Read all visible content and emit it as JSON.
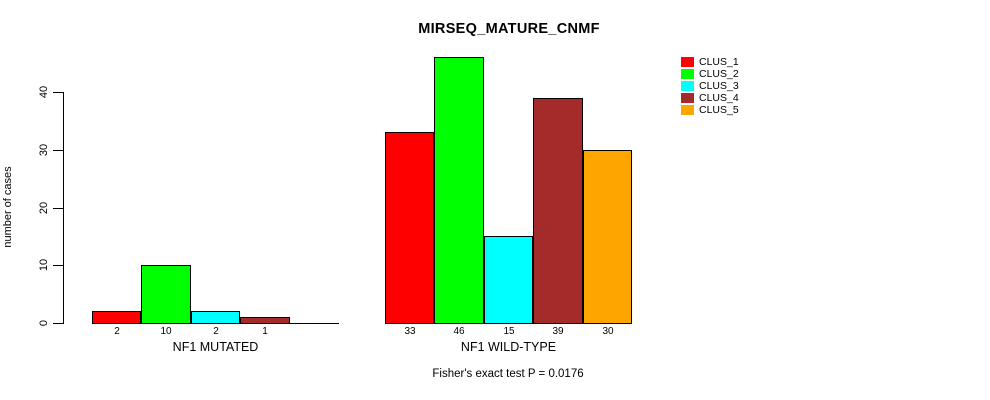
{
  "title": "MIRSEQ_MATURE_CNMF",
  "caption": "Fisher's exact test P = 0.0176",
  "y_axis": {
    "label": "number of cases",
    "ticks": [
      0,
      10,
      20,
      30,
      40
    ]
  },
  "legend": {
    "entries": [
      {
        "label": "CLUS_1",
        "color": "#FF0000"
      },
      {
        "label": "CLUS_2",
        "color": "#00FF00"
      },
      {
        "label": "CLUS_3",
        "color": "#00FFFF"
      },
      {
        "label": "CLUS_4",
        "color": "#A52A2A"
      },
      {
        "label": "CLUS_5",
        "color": "#FFA500"
      }
    ]
  },
  "chart_data": {
    "type": "bar",
    "title": "MIRSEQ_MATURE_CNMF",
    "ylabel": "number of cases",
    "ylim": [
      0,
      46
    ],
    "axis_max": 40,
    "yticks": [
      0,
      10,
      20,
      30,
      40
    ],
    "grid": false,
    "legend_position": "top-right",
    "series_names": [
      "CLUS_1",
      "CLUS_2",
      "CLUS_3",
      "CLUS_4",
      "CLUS_5"
    ],
    "series_colors": [
      "#FF0000",
      "#00FF00",
      "#00FFFF",
      "#A52A2A",
      "#FFA500"
    ],
    "groups": [
      {
        "label": "NF1 MUTATED",
        "values": [
          2,
          10,
          2,
          1,
          0
        ],
        "bar_labels": [
          "2",
          "10",
          "2",
          "1",
          ""
        ]
      },
      {
        "label": "NF1 WILD-TYPE",
        "values": [
          33,
          46,
          15,
          39,
          30
        ],
        "bar_labels": [
          "33",
          "46",
          "15",
          "39",
          "30"
        ]
      }
    ],
    "annotation": "Fisher's exact test P = 0.0176"
  }
}
